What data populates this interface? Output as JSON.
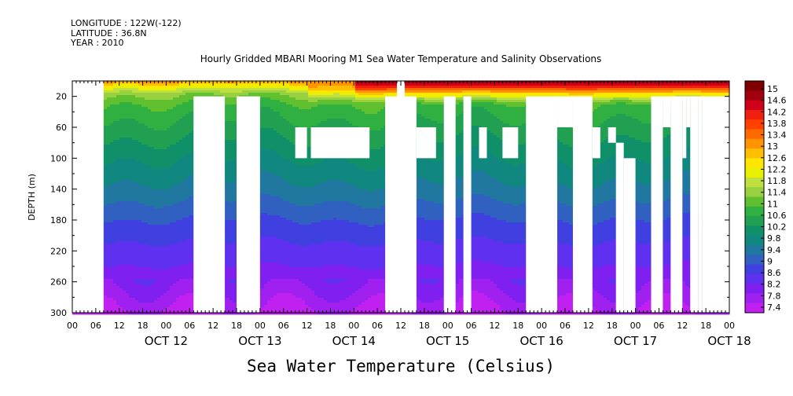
{
  "header": {
    "longitude": "LONGITUDE : 122W(-122)",
    "latitude": "LATITUDE : 36.8N",
    "year": "YEAR : 2010"
  },
  "chart_data": {
    "type": "heatmap",
    "title": "Hourly Gridded MBARI Mooring M1 Sea Water Temperature and Salinity Observations",
    "xlabel": "",
    "ylabel": "DEPTH (m)",
    "colorbar_label": "Sea Water Temperature (Celsius)",
    "x_unit": "hours since OCT 11 00:00",
    "xlim": [
      0,
      168
    ],
    "ylim": [
      300,
      0
    ],
    "y_ticks": [
      20,
      60,
      100,
      140,
      180,
      220,
      260,
      300
    ],
    "hour_tick_labels": [
      "00",
      "06",
      "12",
      "18",
      "00",
      "06",
      "12",
      "18",
      "00",
      "06",
      "12",
      "18",
      "00",
      "06",
      "12",
      "18",
      "00",
      "06",
      "12",
      "18",
      "00",
      "06",
      "12",
      "18",
      "00",
      "06",
      "12",
      "18",
      "00"
    ],
    "day_labels": [
      "OCT 12",
      "OCT 13",
      "OCT 14",
      "OCT 15",
      "OCT 16",
      "OCT 17",
      "OCT 18"
    ],
    "colorbar_levels": [
      "15",
      "14.6",
      "14.2",
      "13.8",
      "13.4",
      "13",
      "12.6",
      "12.2",
      "11.8",
      "11.4",
      "11",
      "10.6",
      "10.2",
      "9.8",
      "9.4",
      "9",
      "8.6",
      "8.2",
      "7.8",
      "7.4"
    ],
    "colors": [
      "#7f0000",
      "#a00010",
      "#d00018",
      "#f02010",
      "#ff4000",
      "#ff6a00",
      "#ff9400",
      "#ffbe00",
      "#ffe600",
      "#e8f000",
      "#c0e040",
      "#98d040",
      "#60c030",
      "#30b040",
      "#20a050",
      "#109068",
      "#108880",
      "#2078a0",
      "#3060c0",
      "#4040e0",
      "#6030f0",
      "#8020f0",
      "#a020f0",
      "#c020f0"
    ],
    "profile": [
      {
        "depth": 0,
        "temp": 12.9
      },
      {
        "depth": 8,
        "temp": 12.0
      },
      {
        "depth": 15,
        "temp": 11.4
      },
      {
        "depth": 30,
        "temp": 10.9
      },
      {
        "depth": 60,
        "temp": 10.5
      },
      {
        "depth": 100,
        "temp": 10.0
      },
      {
        "depth": 140,
        "temp": 9.55
      },
      {
        "depth": 180,
        "temp": 9.0
      },
      {
        "depth": 220,
        "temp": 8.55
      },
      {
        "depth": 260,
        "temp": 8.15
      },
      {
        "depth": 300,
        "temp": 7.6
      }
    ],
    "warm_events": [
      {
        "start": 72,
        "end": 168,
        "surface_temp": 14.8
      },
      {
        "start": 60,
        "end": 72,
        "surface_temp": 13.2
      }
    ],
    "missing_data": [
      {
        "x": [
          0,
          8
        ],
        "y": [
          0,
          300
        ]
      },
      {
        "x": [
          31,
          39
        ],
        "y": [
          20,
          300
        ]
      },
      {
        "x": [
          42,
          48
        ],
        "y": [
          20,
          300
        ]
      },
      {
        "x": [
          57,
          60
        ],
        "y": [
          60,
          100
        ]
      },
      {
        "x": [
          61,
          76
        ],
        "y": [
          60,
          100
        ]
      },
      {
        "x": [
          80,
          88
        ],
        "y": [
          20,
          300
        ]
      },
      {
        "x": [
          83,
          85
        ],
        "y": [
          0,
          20
        ]
      },
      {
        "x": [
          88,
          93
        ],
        "y": [
          60,
          100
        ]
      },
      {
        "x": [
          95,
          98
        ],
        "y": [
          20,
          300
        ]
      },
      {
        "x": [
          100,
          102
        ],
        "y": [
          20,
          300
        ]
      },
      {
        "x": [
          104,
          106
        ],
        "y": [
          60,
          100
        ]
      },
      {
        "x": [
          110,
          114
        ],
        "y": [
          60,
          100
        ]
      },
      {
        "x": [
          116,
          124
        ],
        "y": [
          20,
          300
        ]
      },
      {
        "x": [
          124,
          128
        ],
        "y": [
          20,
          60
        ]
      },
      {
        "x": [
          128,
          133
        ],
        "y": [
          20,
          300
        ]
      },
      {
        "x": [
          133,
          135
        ],
        "y": [
          60,
          100
        ]
      },
      {
        "x": [
          137,
          139
        ],
        "y": [
          60,
          80
        ]
      },
      {
        "x": [
          139,
          141
        ],
        "y": [
          80,
          300
        ]
      },
      {
        "x": [
          141,
          144
        ],
        "y": [
          100,
          300
        ]
      },
      {
        "x": [
          148,
          151
        ],
        "y": [
          20,
          300
        ]
      },
      {
        "x": [
          151,
          153
        ],
        "y": [
          20,
          60
        ]
      },
      {
        "x": [
          153,
          156
        ],
        "y": [
          20,
          300
        ]
      },
      {
        "x": [
          156,
          157
        ],
        "y": [
          20,
          100
        ]
      },
      {
        "x": [
          157,
          158
        ],
        "y": [
          20,
          60
        ]
      },
      {
        "x": [
          158,
          160
        ],
        "y": [
          20,
          300
        ]
      },
      {
        "x": [
          160,
          161
        ],
        "y": [
          20,
          300
        ]
      },
      {
        "x": [
          161,
          168
        ],
        "y": [
          20,
          300
        ]
      }
    ]
  }
}
